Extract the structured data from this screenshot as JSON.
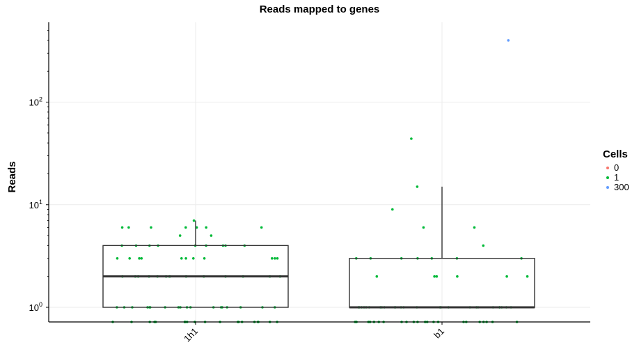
{
  "chart_data": {
    "type": "boxplot-jitter",
    "title": "Reads mapped to genes",
    "xlabel": "",
    "ylabel": "Reads",
    "yscale": "log10",
    "ylim": [
      0.72,
      600
    ],
    "categories": [
      "1h1",
      "b1"
    ],
    "yticks": [
      {
        "value": 1,
        "base": "10",
        "exp": "0"
      },
      {
        "value": 10,
        "base": "10",
        "exp": "1"
      },
      {
        "value": 100,
        "base": "10",
        "exp": "2"
      }
    ],
    "grid": true,
    "boxes": [
      {
        "category": "1h1",
        "min": 1,
        "q1": 1,
        "median": 2,
        "q3": 4,
        "max": 7
      },
      {
        "category": "b1",
        "min": 1,
        "q1": 1,
        "median": 1,
        "q3": 3,
        "max": 15
      }
    ],
    "legend": {
      "title": "Cells",
      "position": "right",
      "entries": [
        {
          "label": "0",
          "color": "#F8766D"
        },
        {
          "label": "1",
          "color": "#00BA38"
        },
        {
          "label": "300",
          "color": "#619CFF"
        }
      ]
    },
    "points": {
      "1h1": {
        "cells_1": [
          7,
          6,
          6,
          6,
          6,
          6,
          6,
          6,
          5,
          5,
          4,
          4,
          4,
          4,
          4,
          4,
          4,
          4,
          4,
          3,
          3,
          3,
          3,
          3,
          3,
          3,
          3,
          3,
          3,
          3,
          2,
          2,
          2,
          2,
          2,
          2,
          2,
          2,
          2,
          2,
          2,
          2,
          2,
          2,
          1,
          1,
          1,
          1,
          1,
          1,
          1,
          1,
          1,
          1,
          1,
          1,
          1,
          1,
          1,
          1,
          1,
          1,
          0.72,
          0.72,
          0.72,
          0.72,
          0.72,
          0.72,
          0.72,
          0.72,
          0.72,
          0.72,
          0.72,
          0.72,
          0.72,
          0.72,
          0.72,
          0.72,
          0.72,
          0.72,
          0.72,
          0.72
        ]
      },
      "b1": {
        "cells_1": [
          44,
          15,
          9,
          6,
          6,
          4,
          3,
          3,
          3,
          3,
          3,
          3,
          3,
          2,
          2,
          2,
          2,
          2,
          2,
          1,
          1,
          1,
          1,
          1,
          1,
          1,
          1,
          1,
          1,
          1,
          1,
          1,
          1,
          1,
          1,
          1,
          1,
          1,
          1,
          1,
          1,
          1,
          1,
          1,
          1,
          0.72,
          0.72,
          0.72,
          0.72,
          0.72,
          0.72,
          0.72,
          0.72,
          0.72,
          0.72,
          0.72,
          0.72,
          0.72,
          0.72,
          0.72,
          0.72,
          0.72,
          0.72,
          0.72,
          0.72,
          0.72,
          0.72
        ],
        "cells_300": [
          400
        ]
      }
    }
  }
}
